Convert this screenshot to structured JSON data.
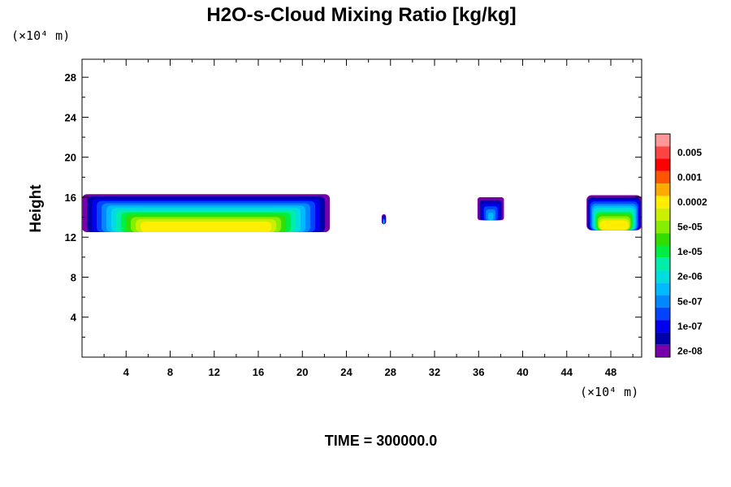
{
  "chart_data": {
    "type": "heatmap",
    "title": "H2O-s-Cloud Mixing Ratio [kg/kg]",
    "ylabel": "Height",
    "xlabel": "",
    "x_unit": "(×10⁴ m)",
    "y_unit": "(×10⁴ m)",
    "xlim": [
      0,
      50.8
    ],
    "ylim": [
      0,
      29.8
    ],
    "x_ticks": [
      4,
      8,
      12,
      16,
      20,
      24,
      28,
      32,
      36,
      40,
      44,
      48
    ],
    "y_ticks": [
      4,
      8,
      12,
      16,
      20,
      24,
      28
    ],
    "x_tick_labels": [
      "4",
      "8",
      "12",
      "16",
      "20",
      "24",
      "28",
      "32",
      "36",
      "40",
      "44",
      "48"
    ],
    "y_tick_labels": [
      "4",
      "8",
      "12",
      "16",
      "20",
      "24",
      "28"
    ],
    "colorbar": {
      "levels": [
        "0.005",
        "0.001",
        "0.0002",
        "5e-05",
        "1e-05",
        "2e-06",
        "5e-07",
        "1e-07",
        "2e-08"
      ],
      "colors_top_to_bottom": [
        "#ff9999",
        "#ff4444",
        "#ff0000",
        "#ff5500",
        "#ffaa00",
        "#ffee00",
        "#ccee00",
        "#88ee00",
        "#33dd00",
        "#00ee44",
        "#00eeaa",
        "#00dddd",
        "#00bbff",
        "#0088ff",
        "#0044ff",
        "#0000ee",
        "#0000aa",
        "#7700aa"
      ]
    },
    "cloud_regions": [
      {
        "x_start": 0.0,
        "x_end": 22.5,
        "y_bottom": 12.5,
        "y_top": 16.3
      },
      {
        "x_start": 27.2,
        "x_end": 27.6,
        "y_bottom": 13.3,
        "y_top": 14.3
      },
      {
        "x_start": 35.9,
        "x_end": 38.3,
        "y_bottom": 13.7,
        "y_top": 16.0
      },
      {
        "x_start": 45.8,
        "x_end": 50.8,
        "y_bottom": 12.7,
        "y_top": 16.2
      }
    ],
    "time_label": "TIME = 300000.0",
    "grid": false,
    "legend_placement": "right"
  }
}
